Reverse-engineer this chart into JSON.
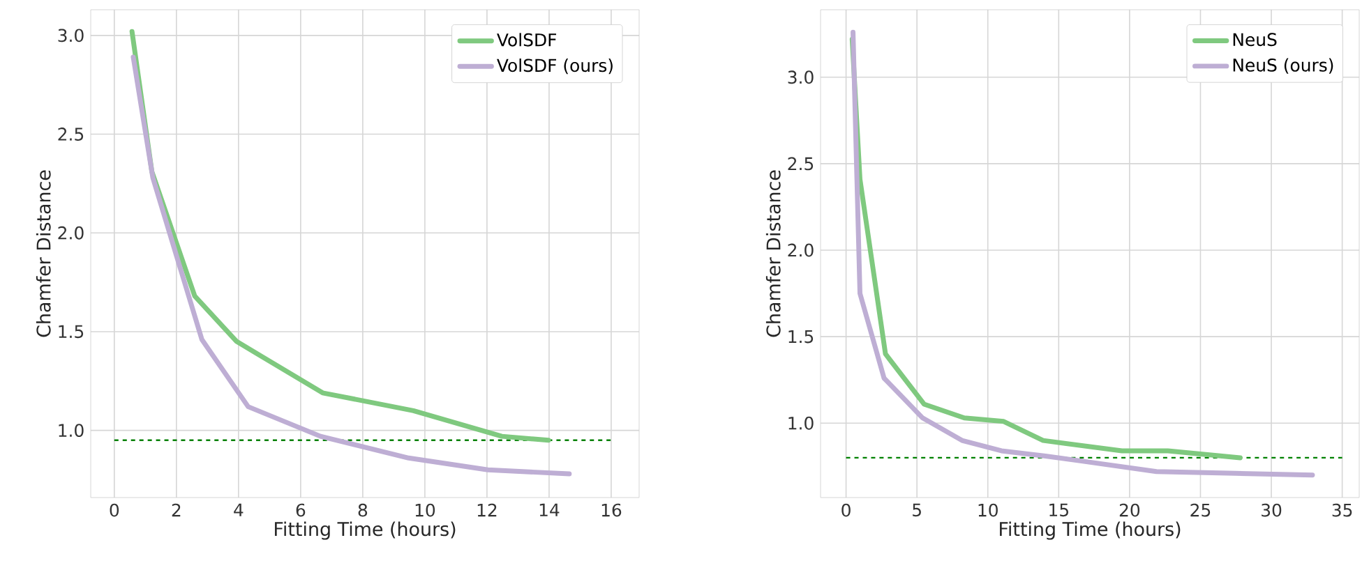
{
  "chart_data": [
    {
      "type": "line",
      "xlabel": "Fitting Time (hours)",
      "ylabel": "Chamfer Distance",
      "xlim": [
        -0.76,
        16.9
      ],
      "ylim": [
        0.66,
        3.13
      ],
      "xticks": [
        0,
        2,
        4,
        6,
        8,
        10,
        12,
        14,
        16
      ],
      "yticks": [
        {
          "value": 1.0,
          "label": "1.0"
        },
        {
          "value": 1.5,
          "label": "1.5"
        },
        {
          "value": 2.0,
          "label": "2.0"
        },
        {
          "value": 2.5,
          "label": "2.5"
        },
        {
          "value": 3.0,
          "label": "3.0"
        }
      ],
      "grid": true,
      "legend": "top right",
      "line_style": "solid",
      "marker": "none",
      "series": [
        {
          "name": "VolSDF",
          "color": "#7fc97f",
          "x": [
            0.57,
            1.21,
            2.59,
            3.94,
            6.71,
            9.63,
            12.48,
            13.98
          ],
          "values": [
            3.02,
            2.31,
            1.68,
            1.45,
            1.19,
            1.1,
            0.97,
            0.95
          ]
        },
        {
          "name": "VolSDF (ours)",
          "color": "#beaed4",
          "x": [
            0.61,
            1.24,
            2.82,
            4.31,
            6.64,
            9.48,
            12.03,
            14.65
          ],
          "values": [
            2.89,
            2.28,
            1.46,
            1.12,
            0.97,
            0.86,
            0.8,
            0.78
          ]
        }
      ],
      "ref_lines": [
        {
          "axis": "y",
          "value": 0.95,
          "color": "#008000",
          "line_style": "dashed"
        }
      ]
    },
    {
      "type": "line",
      "xlabel": "Fitting Time (hours)",
      "ylabel": "Chamfer Distance",
      "xlim": [
        -1.8,
        36.2
      ],
      "ylim": [
        0.57,
        3.39
      ],
      "xticks": [
        0,
        5,
        10,
        15,
        20,
        25,
        30,
        35
      ],
      "yticks": [
        {
          "value": 1.0,
          "label": "1.0"
        },
        {
          "value": 1.5,
          "label": "1.5"
        },
        {
          "value": 2.0,
          "label": "2.0"
        },
        {
          "value": 2.5,
          "label": "2.5"
        },
        {
          "value": 3.0,
          "label": "3.0"
        }
      ],
      "grid": true,
      "legend": "top right",
      "line_style": "solid",
      "marker": "none",
      "series": [
        {
          "name": "NeuS",
          "color": "#7fc97f",
          "x": [
            0.43,
            0.98,
            2.78,
            5.5,
            8.34,
            11.12,
            13.9,
            19.46,
            22.7,
            27.8
          ],
          "values": [
            3.22,
            2.41,
            1.4,
            1.11,
            1.03,
            1.01,
            0.9,
            0.84,
            0.84,
            0.8
          ]
        },
        {
          "name": "NeuS (ours)",
          "color": "#beaed4",
          "x": [
            0.49,
            0.98,
            2.68,
            5.4,
            8.18,
            10.96,
            14.07,
            16.7,
            21.9,
            27.5,
            32.9
          ],
          "values": [
            3.26,
            1.75,
            1.26,
            1.03,
            0.9,
            0.84,
            0.81,
            0.78,
            0.72,
            0.71,
            0.7
          ]
        }
      ],
      "ref_lines": [
        {
          "axis": "y",
          "value": 0.8,
          "color": "#008000",
          "line_style": "dashed"
        }
      ]
    }
  ]
}
